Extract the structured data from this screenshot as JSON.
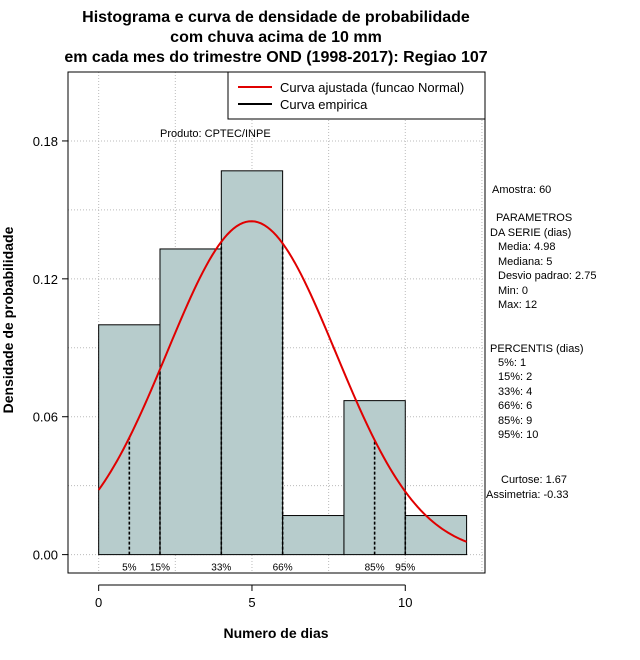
{
  "chart_data": {
    "type": "bar",
    "title_lines": [
      "Histograma e curva de densidade de probabilidade",
      "com chuva acima de 10 mm",
      "em cada mes do trimestre OND (1998-2017): Regiao 107"
    ],
    "xlabel": "Numero de dias",
    "ylabel": "Densidade de probabilidade",
    "xlim": [
      -1,
      12.6
    ],
    "ylim": [
      -0.008,
      0.21
    ],
    "x_ticks": [
      0,
      5,
      10
    ],
    "y_ticks": [
      0.0,
      0.06,
      0.12,
      0.18
    ],
    "y_tick_labels": [
      "0.00",
      "0.06",
      "0.12",
      "0.18"
    ],
    "grid": true,
    "bar_color": "#b7cccc",
    "curve_color": "#e00000",
    "bins": [
      {
        "start": 0,
        "end": 2,
        "density": 0.1
      },
      {
        "start": 2,
        "end": 4,
        "density": 0.133
      },
      {
        "start": 4,
        "end": 6,
        "density": 0.167
      },
      {
        "start": 6,
        "end": 8,
        "density": 0.017
      },
      {
        "start": 8,
        "end": 10,
        "density": 0.067
      },
      {
        "start": 10,
        "end": 12,
        "density": 0.017
      }
    ],
    "normal_fit": {
      "mean": 4.98,
      "sd": 2.75,
      "x_range": [
        0,
        12
      ]
    },
    "percentile_markers": [
      {
        "label": "5%",
        "x": 1
      },
      {
        "label": "15%",
        "x": 2
      },
      {
        "label": "33%",
        "x": 4
      },
      {
        "label": "66%",
        "x": 6
      },
      {
        "label": "85%",
        "x": 9
      },
      {
        "label": "95%",
        "x": 10
      }
    ],
    "legend": {
      "position": "top-right",
      "entries": [
        {
          "label": "Curva ajustada (funcao Normal)",
          "color": "#e00000"
        },
        {
          "label": "Curva empirica",
          "color": "#000000"
        }
      ]
    },
    "annotations": {
      "produto": "Produto: CPTEC/INPE",
      "amostra": "Amostra: 60",
      "parametros_title_1": "PARAMETROS",
      "parametros_title_2": "DA SERIE (dias)",
      "media": "Media: 4.98",
      "mediana": "Mediana: 5",
      "desvio": "Desvio padrao: 2.75",
      "min": "Min: 0",
      "max": "Max: 12",
      "percentis_title": "PERCENTIS (dias)",
      "p5": "5%: 1",
      "p15": "15%: 2",
      "p33": "33%: 4",
      "p66": "66%: 6",
      "p85": "85%: 9",
      "p95": "95%: 10",
      "curtose": "Curtose: 1.67",
      "assimetria": "Assimetria: -0.33"
    }
  }
}
